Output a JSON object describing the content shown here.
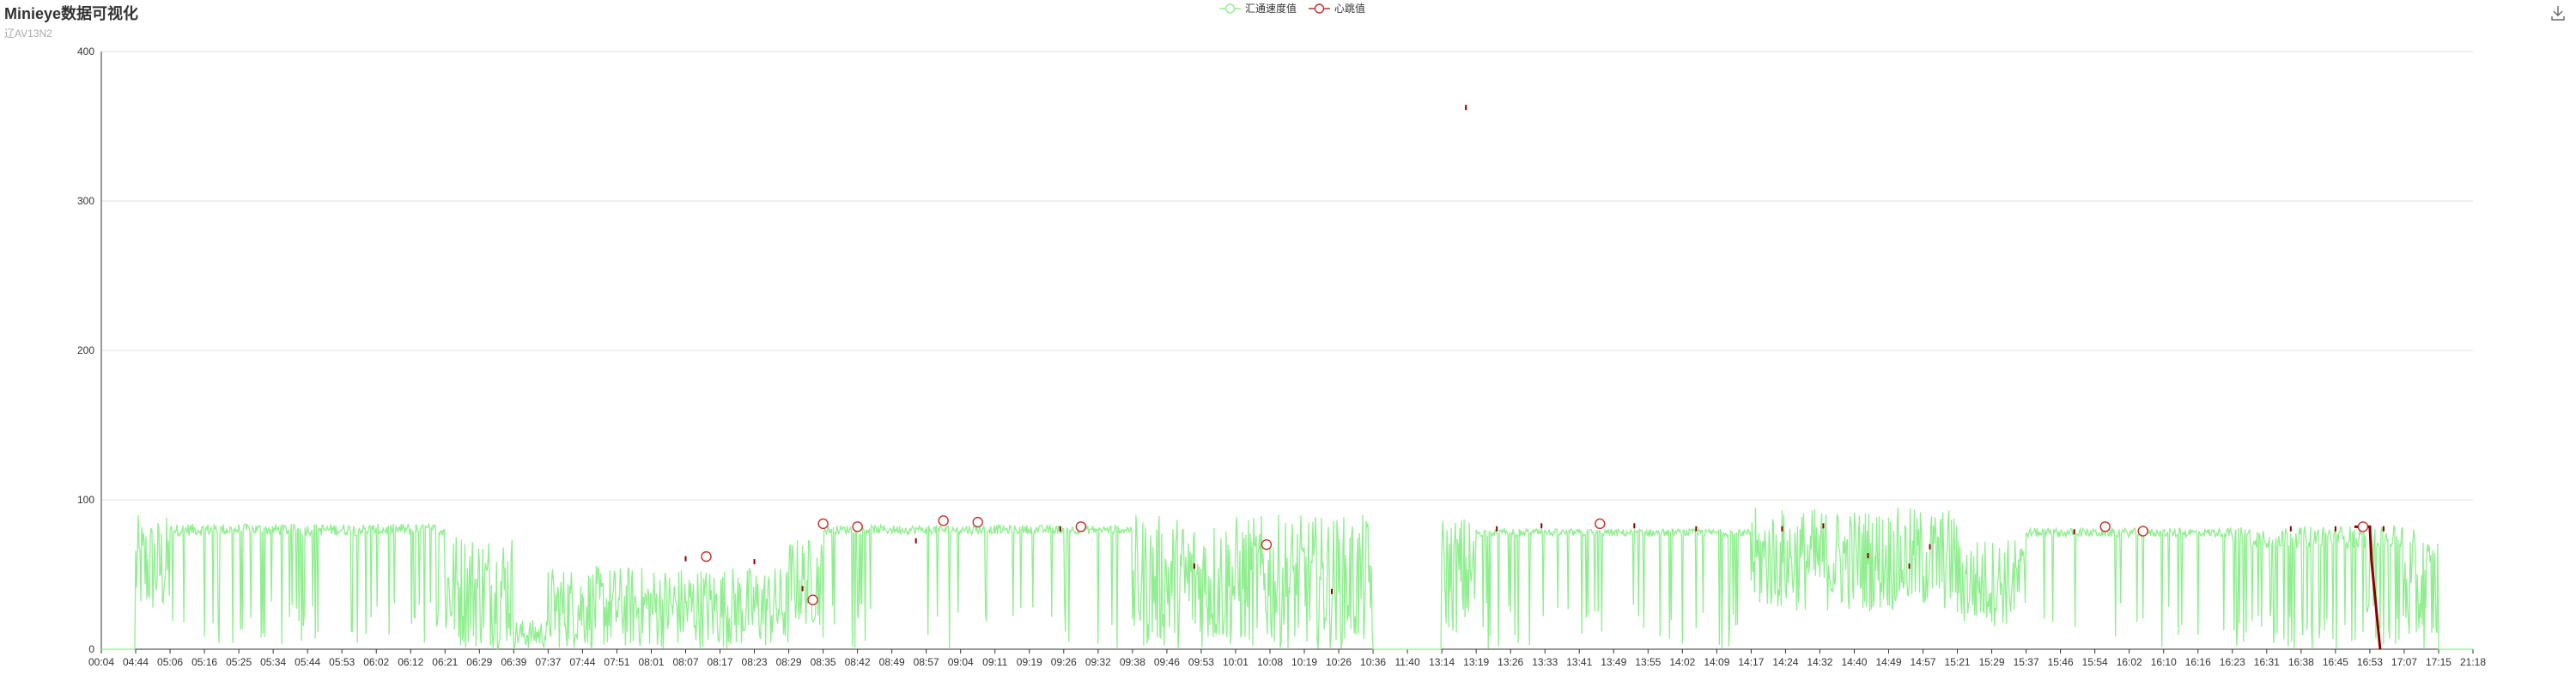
{
  "title": "Minieye数据可视化",
  "subtitle": "辽AV13N2",
  "toolbox": {
    "save_icon": "download-icon"
  },
  "chart_data": {
    "type": "line",
    "title": "Minieye数据可视化",
    "subtitle": "辽AV13N2",
    "xlabel": "",
    "ylabel": "",
    "ylim": [
      0,
      400
    ],
    "yticks": [
      0,
      100,
      200,
      300,
      400
    ],
    "grid": true,
    "legend_position": "top-center",
    "x_tick_labels": [
      "00:04",
      "04:44",
      "05:06",
      "05:16",
      "05:25",
      "05:34",
      "05:44",
      "05:53",
      "06:02",
      "06:12",
      "06:21",
      "06:29",
      "06:39",
      "07:37",
      "07:44",
      "07:51",
      "08:01",
      "08:07",
      "08:17",
      "08:23",
      "08:29",
      "08:35",
      "08:42",
      "08:49",
      "08:57",
      "09:04",
      "09:11",
      "09:19",
      "09:26",
      "09:32",
      "09:38",
      "09:46",
      "09:53",
      "10:01",
      "10:08",
      "10:19",
      "10:26",
      "10:36",
      "11:40",
      "13:14",
      "13:19",
      "13:26",
      "13:33",
      "13:41",
      "13:49",
      "13:55",
      "14:02",
      "14:09",
      "14:17",
      "14:24",
      "14:32",
      "14:40",
      "14:49",
      "14:57",
      "15:21",
      "15:29",
      "15:37",
      "15:46",
      "15:54",
      "16:02",
      "16:10",
      "16:16",
      "16:23",
      "16:31",
      "16:38",
      "16:45",
      "16:53",
      "17:07",
      "17:15",
      "21:18"
    ],
    "series": [
      {
        "name": "汇通速度值",
        "color": "#90ee90",
        "segments": [
          {
            "from": 0,
            "to": 1,
            "level": 0,
            "noise": 0
          },
          {
            "from": 1,
            "to": 2,
            "level": 55,
            "noise": 35
          },
          {
            "from": 2,
            "to": 10,
            "level": 80,
            "noise": 8,
            "dips": 0.12
          },
          {
            "from": 10,
            "to": 12,
            "level": 40,
            "noise": 40
          },
          {
            "from": 12,
            "to": 13,
            "level": 10,
            "noise": 10
          },
          {
            "from": 13,
            "to": 20,
            "level": 28,
            "noise": 28
          },
          {
            "from": 20,
            "to": 21,
            "level": 45,
            "noise": 30
          },
          {
            "from": 21,
            "to": 30,
            "level": 80,
            "noise": 6,
            "dips": 0.08
          },
          {
            "from": 30,
            "to": 37,
            "level": 45,
            "noise": 45
          },
          {
            "from": 37,
            "to": 39,
            "level": 0,
            "noise": 0
          },
          {
            "from": 39,
            "to": 40,
            "level": 50,
            "noise": 40
          },
          {
            "from": 40,
            "to": 48,
            "level": 78,
            "noise": 5,
            "dips": 0.1
          },
          {
            "from": 48,
            "to": 54,
            "level": 60,
            "noise": 35
          },
          {
            "from": 54,
            "to": 56,
            "level": 45,
            "noise": 30
          },
          {
            "from": 56,
            "to": 62,
            "level": 78,
            "noise": 6,
            "dips": 0.08
          },
          {
            "from": 62,
            "to": 67,
            "level": 75,
            "noise": 15,
            "dips": 0.25
          },
          {
            "from": 67,
            "to": 68,
            "level": 40,
            "noise": 40
          },
          {
            "from": 68,
            "to": 69,
            "level": 0,
            "noise": 0
          }
        ]
      },
      {
        "name": "心跳值",
        "color": "#8b0000",
        "markers": [
          {
            "x": 17.6,
            "y": 62
          },
          {
            "x": 20.7,
            "y": 33
          },
          {
            "x": 21.0,
            "y": 84
          },
          {
            "x": 22.0,
            "y": 82
          },
          {
            "x": 24.5,
            "y": 86
          },
          {
            "x": 25.5,
            "y": 85
          },
          {
            "x": 28.5,
            "y": 82
          },
          {
            "x": 33.9,
            "y": 70
          },
          {
            "x": 43.6,
            "y": 84
          },
          {
            "x": 58.3,
            "y": 82
          },
          {
            "x": 59.4,
            "y": 79
          },
          {
            "x": 65.8,
            "y": 82
          }
        ],
        "stray_points": [
          {
            "x": 39.7,
            "y": 362
          },
          {
            "x": 17.0,
            "y": 60
          },
          {
            "x": 19.0,
            "y": 58
          },
          {
            "x": 20.4,
            "y": 40
          },
          {
            "x": 23.7,
            "y": 72
          },
          {
            "x": 27.9,
            "y": 80
          },
          {
            "x": 31.8,
            "y": 55
          },
          {
            "x": 35.8,
            "y": 38
          },
          {
            "x": 40.6,
            "y": 80
          },
          {
            "x": 41.9,
            "y": 82
          },
          {
            "x": 44.6,
            "y": 82
          },
          {
            "x": 46.4,
            "y": 80
          },
          {
            "x": 48.9,
            "y": 80
          },
          {
            "x": 50.1,
            "y": 82
          },
          {
            "x": 51.4,
            "y": 62
          },
          {
            "x": 52.6,
            "y": 55
          },
          {
            "x": 53.2,
            "y": 68
          },
          {
            "x": 57.4,
            "y": 78
          },
          {
            "x": 63.7,
            "y": 80
          },
          {
            "x": 65.0,
            "y": 80
          },
          {
            "x": 66.4,
            "y": 80
          }
        ],
        "drop": {
          "x_from": 66.0,
          "x_to": 66.3,
          "level": 82
        }
      }
    ]
  }
}
